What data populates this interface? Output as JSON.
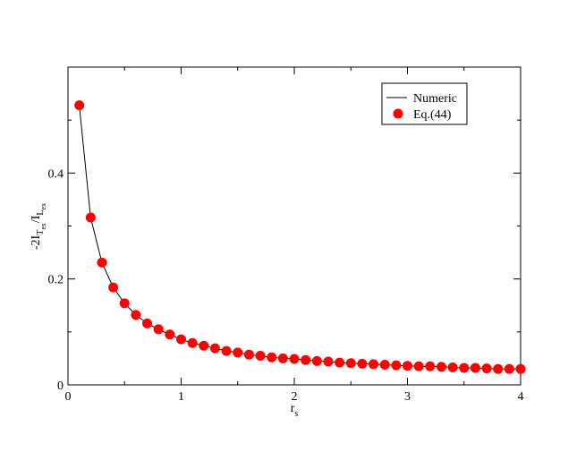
{
  "chart_data": {
    "type": "line",
    "xlabel": [
      "r",
      "s"
    ],
    "ylabel": [
      "-2I",
      "T",
      "ex",
      "/I",
      "L",
      "ex"
    ],
    "x": [
      0.1,
      0.2,
      0.3,
      0.4,
      0.5,
      0.6,
      0.7,
      0.8,
      0.9,
      1.0,
      1.1,
      1.2,
      1.3,
      1.4,
      1.5,
      1.6,
      1.7,
      1.8,
      1.9,
      2.0,
      2.1,
      2.2,
      2.3,
      2.4,
      2.5,
      2.6,
      2.7,
      2.8,
      2.9,
      3.0,
      3.1,
      3.2,
      3.3,
      3.4,
      3.5,
      3.6,
      3.7,
      3.8,
      3.9,
      4.0
    ],
    "series": [
      {
        "name": "Numeric",
        "color": "#000000",
        "marker": false,
        "values": [
          0.528,
          0.316,
          0.231,
          0.184,
          0.154,
          0.132,
          0.116,
          0.105,
          0.095,
          0.086,
          0.079,
          0.074,
          0.069,
          0.064,
          0.061,
          0.057,
          0.055,
          0.052,
          0.05,
          0.049,
          0.047,
          0.045,
          0.044,
          0.042,
          0.041,
          0.04,
          0.039,
          0.038,
          0.037,
          0.036,
          0.035,
          0.035,
          0.034,
          0.033,
          0.032,
          0.032,
          0.031,
          0.03,
          0.03,
          0.03
        ]
      },
      {
        "name": "Eq.(44)",
        "color": "#ff0000",
        "marker": true,
        "values": [
          0.528,
          0.316,
          0.231,
          0.184,
          0.154,
          0.132,
          0.116,
          0.105,
          0.095,
          0.086,
          0.079,
          0.074,
          0.069,
          0.064,
          0.061,
          0.057,
          0.055,
          0.052,
          0.05,
          0.049,
          0.047,
          0.045,
          0.044,
          0.042,
          0.041,
          0.04,
          0.039,
          0.038,
          0.037,
          0.036,
          0.035,
          0.035,
          0.034,
          0.033,
          0.032,
          0.032,
          0.031,
          0.03,
          0.03,
          0.03
        ]
      }
    ],
    "xlim": [
      0,
      4
    ],
    "xticks": [
      0,
      1,
      2,
      3,
      4
    ],
    "xminorticks": [
      0.5,
      1.5,
      2.5,
      3.5
    ],
    "ylim": [
      0,
      0.6
    ],
    "yticks": [
      0,
      0.2,
      0.4
    ],
    "yminorticks": [
      0.1,
      0.3,
      0.5
    ],
    "legend": "top-right"
  }
}
